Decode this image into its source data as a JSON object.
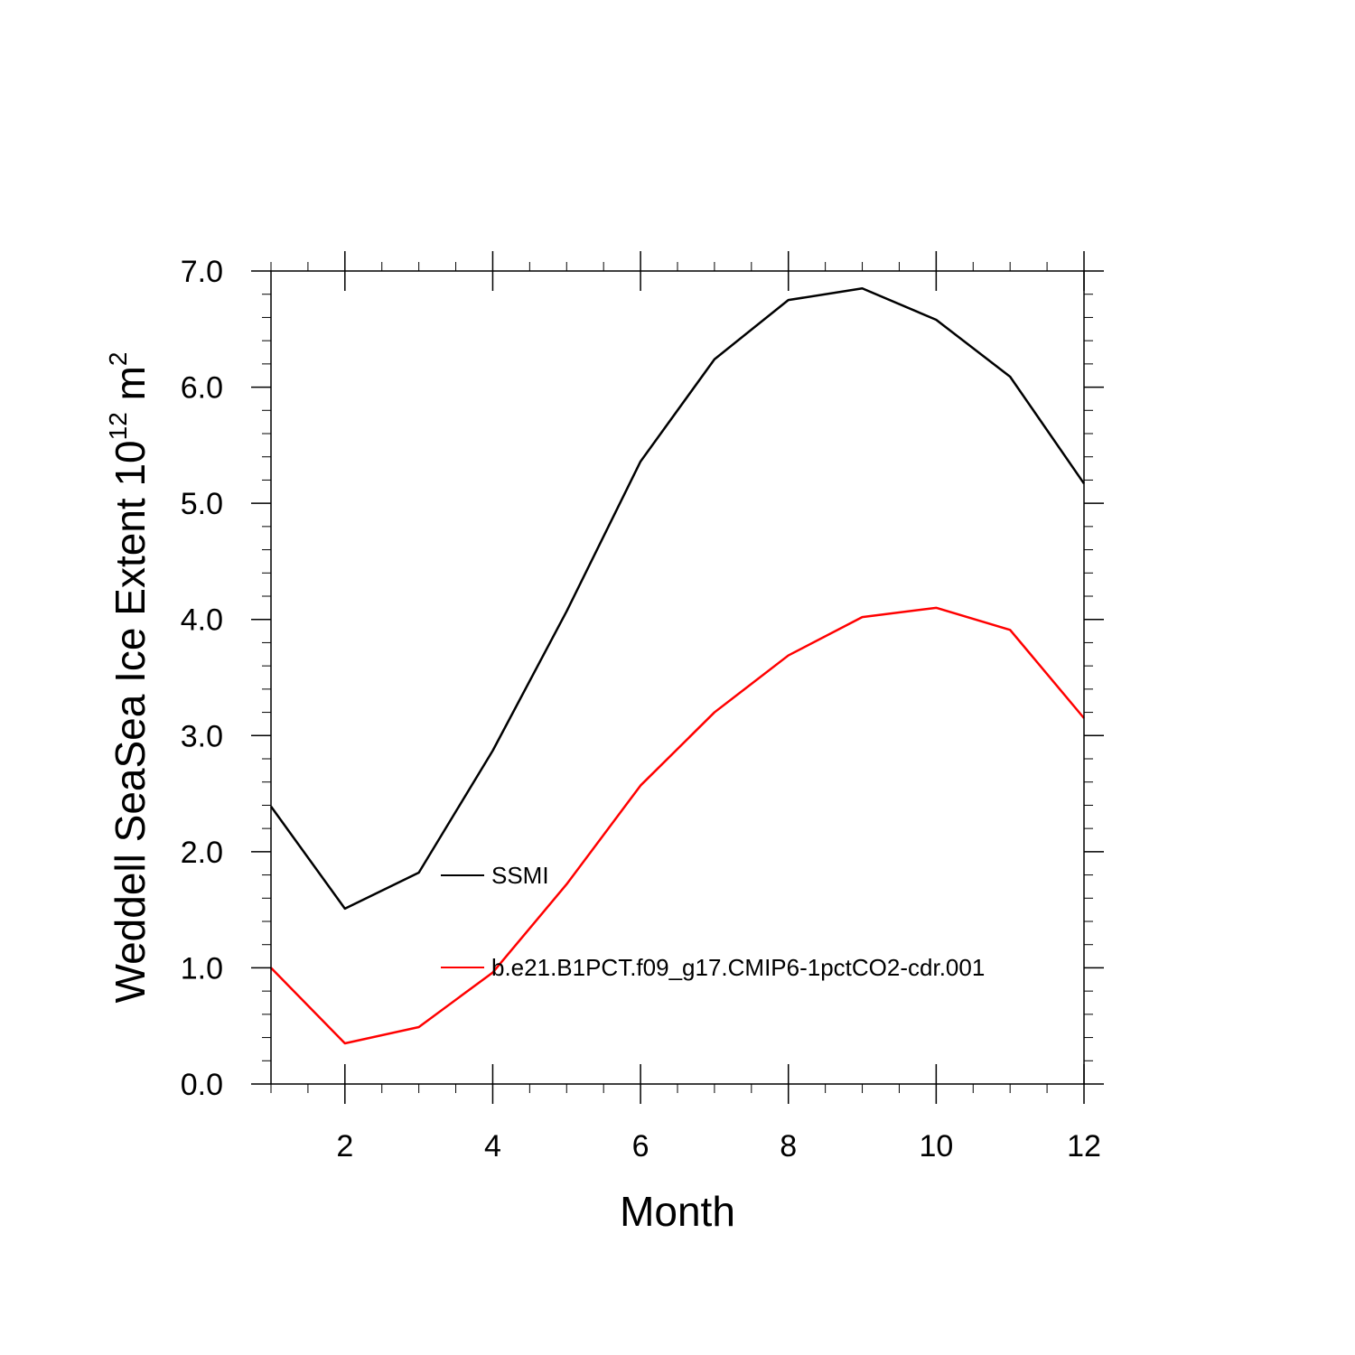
{
  "chart_data": {
    "type": "line",
    "xlabel": "Month",
    "ylabel_main": "Weddell SeaSea Ice Extent 10",
    "ylabel_sup1": "12",
    "ylabel_unit": " m",
    "ylabel_sup2": "2",
    "xlim": [
      1,
      12
    ],
    "ylim": [
      0,
      7
    ],
    "x_ticks": [
      2,
      4,
      6,
      8,
      10,
      12
    ],
    "x_tick_labels": [
      "2",
      "4",
      "6",
      "8",
      "10",
      "12"
    ],
    "y_ticks": [
      0,
      1,
      2,
      3,
      4,
      5,
      6,
      7
    ],
    "y_tick_labels": [
      "0.0",
      "1.0",
      "2.0",
      "3.0",
      "4.0",
      "5.0",
      "6.0",
      "7.0"
    ],
    "x": [
      1,
      2,
      3,
      4,
      5,
      6,
      7,
      8,
      9,
      10,
      11,
      12
    ],
    "series": [
      {
        "name": "SSMI",
        "color": "#000000",
        "values": [
          2.39,
          1.51,
          1.82,
          2.87,
          4.07,
          5.36,
          6.24,
          6.75,
          6.85,
          6.58,
          6.09,
          5.17
        ]
      },
      {
        "name": "b.e21.B1PCT.f09_g17.CMIP6-1pctCO2-cdr.001",
        "color": "#ff0000",
        "values": [
          1.0,
          0.35,
          0.49,
          0.96,
          1.72,
          2.57,
          3.2,
          3.69,
          4.02,
          4.1,
          3.91,
          3.15
        ]
      }
    ],
    "legend_placement": "center",
    "grid": false
  }
}
